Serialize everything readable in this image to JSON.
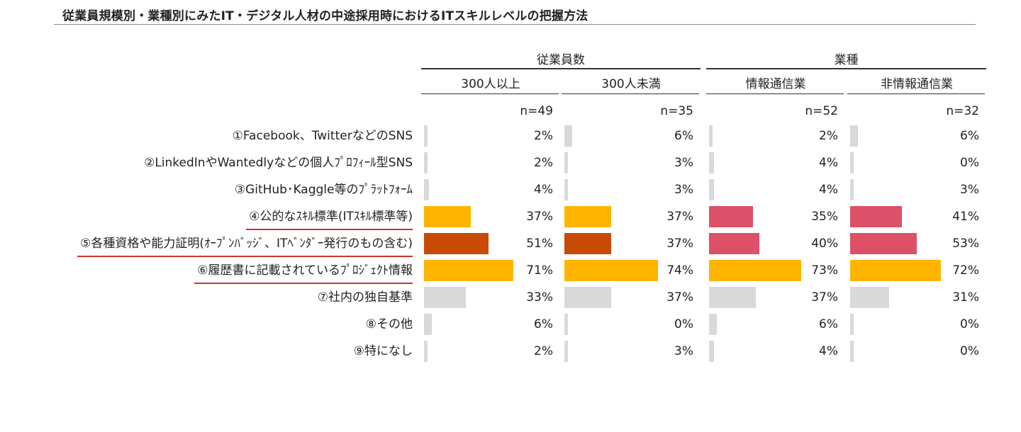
{
  "title": "従業員規模別・業種別にみたIT・デジタル人材の中途採用時におけるITスキルレベルの把握方法",
  "chart_data": {
    "type": "bar",
    "groups": [
      {
        "label": "従業員数",
        "columns": [
          0,
          1
        ]
      },
      {
        "label": "業種",
        "columns": [
          2,
          3
        ]
      }
    ],
    "columns": [
      {
        "label": "300人以上",
        "n": "n=49"
      },
      {
        "label": "300人未満",
        "n": "n=35"
      },
      {
        "label": "情報通信業",
        "n": "n=52"
      },
      {
        "label": "非情報通信業",
        "n": "n=32"
      }
    ],
    "categories": [
      "①Facebook、TwitterなどのSNS",
      "②LinkedInやWantedlyなどの個人ﾌﾟﾛﾌｨｰﾙ型SNS",
      "③GitHub･Kaggle等のﾌﾟﾗｯﾄﾌｫｰﾑ",
      "④公的なｽｷﾙ標準(ITｽｷﾙ標準等)",
      "⑤各種資格や能力証明(ｵｰﾌﾟﾝﾊﾞｯｼﾞ、ITﾍﾞﾝﾀﾞｰ発行のもの含む)",
      "⑥履歴書に記載されているﾌﾟﾛｼﾞｪｸﾄ情報",
      "⑦社内の独自基準",
      "⑧その他",
      "⑨特になし"
    ],
    "series": [
      {
        "values": [
          2,
          2,
          4,
          37,
          51,
          71,
          33,
          6,
          2
        ]
      },
      {
        "values": [
          6,
          3,
          3,
          37,
          37,
          74,
          37,
          0,
          3
        ]
      },
      {
        "values": [
          2,
          4,
          4,
          35,
          40,
          73,
          37,
          6,
          4
        ]
      },
      {
        "values": [
          6,
          0,
          3,
          41,
          53,
          72,
          31,
          0,
          0
        ]
      }
    ],
    "value_suffix": "%",
    "xlim": [
      0,
      100
    ],
    "highlighted_rows": [
      3,
      4,
      5
    ],
    "colors": {
      "neutral": "#d9d9d9",
      "yellow": "#ffb400",
      "dark_orange": "#c84a06",
      "pink": "#dc5068",
      "highlight_line": "#d0342c"
    },
    "bar_colors": [
      [
        "neutral",
        "neutral",
        "neutral",
        "neutral",
        "neutral",
        "neutral",
        "neutral",
        "neutral",
        "neutral"
      ],
      [
        "neutral",
        "neutral",
        "neutral",
        "neutral",
        "neutral",
        "neutral",
        "neutral",
        "neutral",
        "neutral"
      ],
      [
        "neutral",
        "neutral",
        "neutral",
        "neutral",
        "neutral",
        "neutral",
        "neutral",
        "neutral",
        "neutral"
      ],
      [
        "neutral",
        "neutral",
        "neutral",
        "neutral",
        "neutral",
        "neutral",
        "neutral",
        "neutral",
        "neutral"
      ]
    ],
    "row_bar_colors": {
      "3": [
        "yellow",
        "yellow",
        "pink",
        "pink"
      ],
      "4": [
        "dark_orange",
        "dark_orange",
        "pink",
        "pink"
      ],
      "5": [
        "yellow",
        "yellow",
        "yellow",
        "yellow"
      ]
    }
  }
}
